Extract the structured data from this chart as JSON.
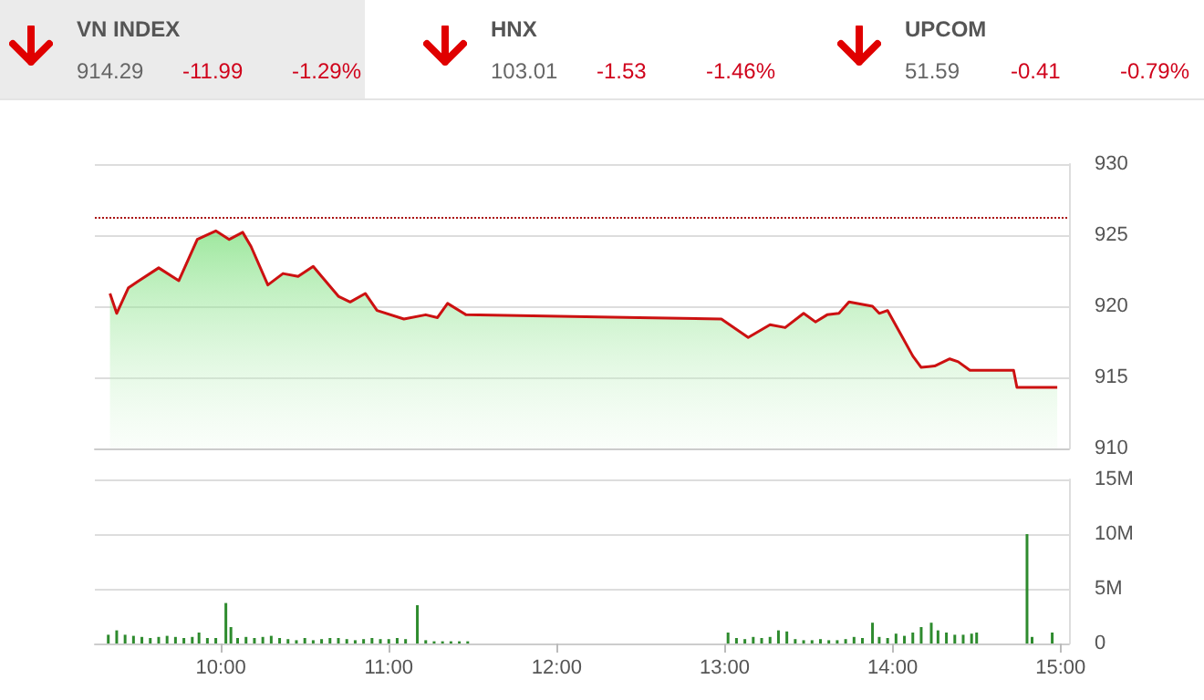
{
  "chart_data": [
    {
      "type": "other",
      "annotations": [
        "VN INDEX",
        "914.29",
        "-11.99",
        "-1.29%",
        "HNX",
        "103.01",
        "-1.53",
        "-1.46%",
        "UPCOM",
        "51.59",
        "-0.41",
        "-0.79%"
      ]
    },
    {
      "type": "area",
      "x": [
        9.34,
        9.38,
        9.45,
        9.5,
        9.63,
        9.75,
        9.86,
        9.97,
        10.05,
        10.13,
        10.18,
        10.28,
        10.37,
        10.46,
        10.55,
        10.6,
        10.7,
        10.77,
        10.86,
        10.93,
        11.09,
        11.22,
        11.29,
        11.35,
        11.46,
        12.49,
        12.98,
        13.14,
        13.27,
        13.36,
        13.47,
        13.54,
        13.61,
        13.68,
        13.74,
        13.88,
        13.92,
        13.97,
        14.05,
        14.12,
        14.17,
        14.25,
        14.34,
        14.39,
        14.46,
        14.72,
        14.74,
        14.98
      ],
      "series": [
        {
          "color": "#cc1111",
          "values": [
            920.9,
            919.5,
            921.3,
            921.7,
            922.7,
            921.8,
            924.7,
            925.3,
            924.7,
            925.2,
            924.2,
            921.5,
            922.3,
            922.1,
            922.8,
            922.1,
            920.7,
            920.3,
            920.9,
            919.7,
            919.1,
            919.4,
            919.2,
            920.2,
            919.4,
            919.2,
            919.1,
            917.8,
            918.7,
            918.5,
            919.5,
            918.9,
            919.4,
            919.5,
            920.3,
            920.0,
            919.5,
            919.7,
            918.0,
            916.5,
            915.7,
            915.8,
            916.3,
            916.1,
            915.5,
            915.5,
            914.3,
            914.3
          ]
        }
      ],
      "xlim": [
        9.25,
        15.05
      ],
      "ylim": [
        910,
        930
      ],
      "yticks": [
        910,
        915,
        920,
        925,
        930
      ],
      "grid": "y",
      "tick_labels": "y",
      "ref_lines": [
        {
          "axis": "y",
          "value": 926.3,
          "color": "#aa1111",
          "line_style": "dotted"
        }
      ]
    },
    {
      "type": "bar",
      "x": [
        9.33,
        9.38,
        9.43,
        9.48,
        9.53,
        9.58,
        9.63,
        9.68,
        9.73,
        9.78,
        9.83,
        9.87,
        9.92,
        9.97,
        10.03,
        10.06,
        10.1,
        10.15,
        10.2,
        10.25,
        10.3,
        10.35,
        10.4,
        10.45,
        10.5,
        10.55,
        10.6,
        10.65,
        10.7,
        10.75,
        10.8,
        10.85,
        10.9,
        10.95,
        11.0,
        11.05,
        11.1,
        11.17,
        11.22,
        11.27,
        11.32,
        11.37,
        11.42,
        11.47,
        13.02,
        13.07,
        13.12,
        13.17,
        13.22,
        13.27,
        13.32,
        13.37,
        13.42,
        13.47,
        13.52,
        13.57,
        13.62,
        13.67,
        13.72,
        13.77,
        13.82,
        13.88,
        13.92,
        13.97,
        14.02,
        14.07,
        14.12,
        14.17,
        14.23,
        14.27,
        14.32,
        14.37,
        14.42,
        14.47,
        14.5,
        14.8,
        14.83,
        14.95
      ],
      "series": [
        {
          "color": "#2e8b2e",
          "values": [
            0.8,
            1.2,
            0.8,
            0.7,
            0.6,
            0.5,
            0.6,
            0.7,
            0.6,
            0.5,
            0.6,
            1.0,
            0.5,
            0.5,
            3.7,
            1.5,
            0.5,
            0.6,
            0.5,
            0.6,
            0.7,
            0.5,
            0.4,
            0.3,
            0.5,
            0.3,
            0.4,
            0.5,
            0.5,
            0.4,
            0.3,
            0.4,
            0.5,
            0.4,
            0.4,
            0.5,
            0.4,
            3.5,
            0.3,
            0.2,
            0.2,
            0.2,
            0.2,
            0.2,
            1.0,
            0.5,
            0.4,
            0.6,
            0.5,
            0.6,
            1.2,
            1.1,
            0.4,
            0.3,
            0.3,
            0.4,
            0.3,
            0.3,
            0.4,
            0.6,
            0.5,
            1.9,
            0.6,
            0.5,
            0.9,
            0.7,
            1.0,
            1.5,
            1.9,
            1.2,
            1.0,
            0.8,
            0.8,
            0.9,
            1.0,
            10.0,
            0.6,
            1.0
          ]
        }
      ],
      "xlim": [
        9.25,
        15.05
      ],
      "xticks": [
        {
          "value": 10,
          "label": "10:00"
        },
        {
          "value": 11,
          "label": "11:00"
        },
        {
          "value": 12,
          "label": "12:00"
        },
        {
          "value": 13,
          "label": "13:00"
        },
        {
          "value": 14,
          "label": "14:00"
        },
        {
          "value": 15,
          "label": "15:00"
        }
      ],
      "ylim": [
        0,
        15
      ],
      "yticks": [
        0,
        {
          "value": 5,
          "label": "5M"
        },
        {
          "value": 10,
          "label": "10M"
        },
        {
          "value": 15,
          "label": "15M"
        }
      ],
      "grid": "y"
    }
  ]
}
